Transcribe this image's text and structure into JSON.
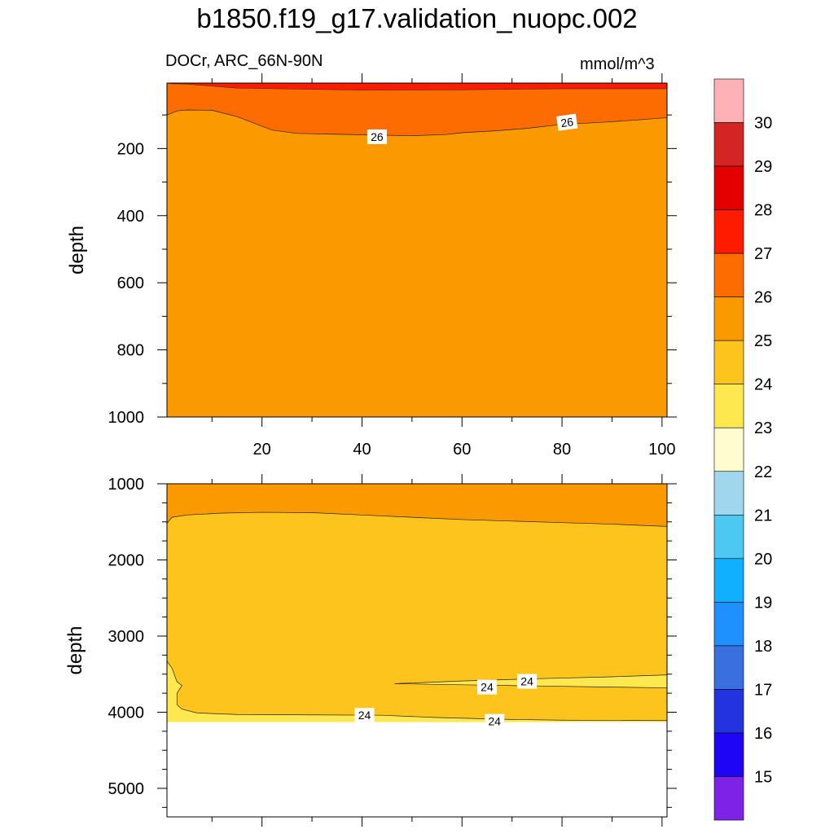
{
  "title": "b1850.f19_g17.validation_nuopc.002",
  "subtitle_left": "DOCr, ARC_66N-90N",
  "subtitle_right": "mmol/m^3",
  "colors": {
    "c14": "#7e22e8",
    "c15": "#1e05f5",
    "c16": "#2433e0",
    "c17": "#3a6fe0",
    "c18": "#2090ff",
    "c19": "#10b0ff",
    "c20": "#4cc8f2",
    "c21": "#a0d6ee",
    "c22": "#fffdd0",
    "c23": "#fde84f",
    "c24": "#fdc41e",
    "c25": "#fb9a00",
    "c26": "#fd6c00",
    "c27": "#ff1b00",
    "c28": "#e50000",
    "c29": "#d42424",
    "c30": "#ffb2b5"
  },
  "chart_data": [
    {
      "type": "contour",
      "panel": "upper",
      "ylabel": "depth",
      "x_ticks": [
        "20",
        "40",
        "60",
        "80",
        "100"
      ],
      "y_ticks": [
        "200",
        "400",
        "600",
        "800",
        "1000"
      ],
      "xlim": [
        1,
        101
      ],
      "ylim": [
        1000,
        5
      ],
      "contour_labels": [
        "26",
        "26"
      ],
      "regions": [
        {
          "level": "27-28",
          "color_key": "c27",
          "description": "thin surface layer"
        },
        {
          "level": "26-27",
          "color_key": "c26",
          "upper_boundary": [
            [
              1,
              5
            ],
            [
              2,
              7
            ],
            [
              5,
              8
            ],
            [
              15,
              20
            ],
            [
              40,
              26
            ],
            [
              60,
              25
            ],
            [
              80,
              22
            ],
            [
              101,
              22
            ]
          ],
          "lower_boundary": [
            [
              1,
              100
            ],
            [
              3,
              88
            ],
            [
              5,
              85
            ],
            [
              10,
              86
            ],
            [
              15,
              105
            ],
            [
              22,
              145
            ],
            [
              27,
              155
            ],
            [
              33,
              157
            ],
            [
              43,
              160
            ],
            [
              50,
              162
            ],
            [
              57,
              158
            ],
            [
              60,
              153
            ],
            [
              67,
              147
            ],
            [
              73,
              140
            ],
            [
              80,
              128
            ],
            [
              88,
              122
            ],
            [
              95,
              115
            ],
            [
              101,
              108
            ]
          ]
        },
        {
          "level": "25-26",
          "color_key": "c25"
        }
      ]
    },
    {
      "type": "contour",
      "panel": "lower",
      "ylabel": "depth",
      "y_ticks": [
        "1000",
        "2000",
        "3000",
        "4000",
        "5000"
      ],
      "xlim": [
        1,
        101
      ],
      "ylim": [
        5375,
        1000
      ],
      "contour_labels": [
        "24",
        "24",
        "24",
        "24"
      ],
      "regions": [
        {
          "level": "25-26",
          "color_key": "c25",
          "description": "upper layer to about 1350-1600 m"
        },
        {
          "level": "24-25",
          "color_key": "c24"
        },
        {
          "level": "23-24",
          "color_key": "c23",
          "description": "bottom layer and western edge, plus tongue near 3500-3700 m"
        },
        {
          "level": "no data",
          "color_key": "none",
          "description": "below about 4130 m"
        }
      ]
    }
  ],
  "colorbar": {
    "labels": [
      "30",
      "29",
      "28",
      "27",
      "26",
      "25",
      "24",
      "23",
      "22",
      "21",
      "20",
      "19",
      "18",
      "17",
      "16",
      "15"
    ],
    "colors": [
      "c30",
      "c29",
      "c28",
      "c27",
      "c26",
      "c25",
      "c24",
      "c23",
      "c22",
      "c21",
      "c20",
      "c19",
      "c18",
      "c17",
      "c16",
      "c15",
      "c14"
    ]
  }
}
